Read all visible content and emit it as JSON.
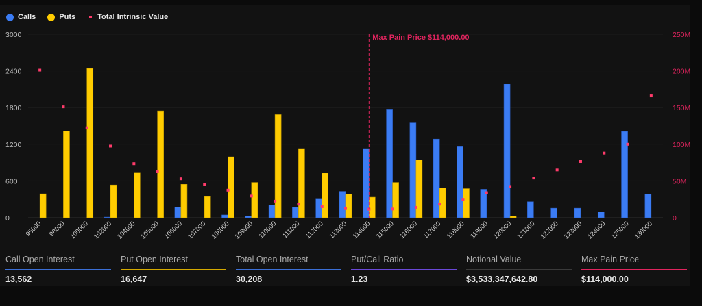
{
  "legend": {
    "calls": "Calls",
    "puts": "Puts",
    "intrinsic": "Total Intrinsic Value"
  },
  "colors": {
    "calls": "#3b7cf4",
    "puts": "#ffcc00",
    "intrinsic": "#ff3b6b",
    "max_pain": "#e0245e",
    "ratio": "#6a48d7",
    "notional": "#3a3a3a"
  },
  "chart_data": {
    "type": "bar",
    "categories": [
      "95000",
      "98000",
      "100000",
      "102000",
      "104000",
      "105000",
      "106000",
      "107000",
      "108000",
      "109000",
      "110000",
      "111000",
      "112000",
      "113000",
      "114000",
      "115000",
      "116000",
      "117000",
      "118000",
      "119000",
      "120000",
      "121000",
      "122000",
      "123000",
      "124000",
      "125000",
      "130000"
    ],
    "series": [
      {
        "name": "Calls",
        "type": "bar",
        "axis": "left",
        "values": [
          0,
          0,
          0,
          10,
          0,
          0,
          175,
          0,
          45,
          30,
          205,
          170,
          315,
          430,
          1130,
          1775,
          1560,
          1285,
          1160,
          465,
          2185,
          260,
          155,
          155,
          95,
          1410,
          385
        ]
      },
      {
        "name": "Puts",
        "type": "bar",
        "axis": "left",
        "values": [
          390,
          1415,
          2440,
          535,
          740,
          1745,
          545,
          345,
          995,
          575,
          1685,
          1130,
          730,
          385,
          335,
          575,
          945,
          485,
          475,
          0,
          25,
          0,
          0,
          0,
          0,
          0,
          0
        ]
      },
      {
        "name": "Total Intrinsic Value",
        "type": "scatter",
        "axis": "right",
        "values": [
          201000000,
          151000000,
          122500000,
          97500000,
          73500000,
          63000000,
          53000000,
          45000000,
          37500000,
          29500000,
          22500000,
          18500000,
          15000000,
          12500000,
          11500000,
          11800000,
          14000000,
          18500000,
          25000000,
          34000000,
          42500000,
          54000000,
          65000000,
          76500000,
          88000000,
          100000000,
          166000000
        ]
      }
    ],
    "y_left": {
      "range": [
        0,
        3000
      ],
      "ticks": [
        "0",
        "600",
        "1200",
        "1800",
        "2400",
        "3000"
      ]
    },
    "y_right": {
      "range": [
        0,
        250000000
      ],
      "ticks": [
        "0",
        "50M",
        "100M",
        "150M",
        "200M",
        "250M"
      ]
    },
    "grid": true,
    "legend_position": "top-left",
    "annotation": {
      "category": "114000",
      "label": "Max Pain Price $114,000.00"
    }
  },
  "stats": [
    {
      "label": "Call Open Interest",
      "value": "13,562",
      "color": "#3b6fd6"
    },
    {
      "label": "Put Open Interest",
      "value": "16,647",
      "color": "#d4a900"
    },
    {
      "label": "Total Open Interest",
      "value": "30,208",
      "color": "#3b6fd6"
    },
    {
      "label": "Put/Call Ratio",
      "value": "1.23",
      "color": "#6a48d7"
    },
    {
      "label": "Notional Value",
      "value": "$3,533,347,642.80",
      "color": "#3a3a3a"
    },
    {
      "label": "Max Pain Price",
      "value": "$114,000.00",
      "color": "#e0245e"
    }
  ]
}
